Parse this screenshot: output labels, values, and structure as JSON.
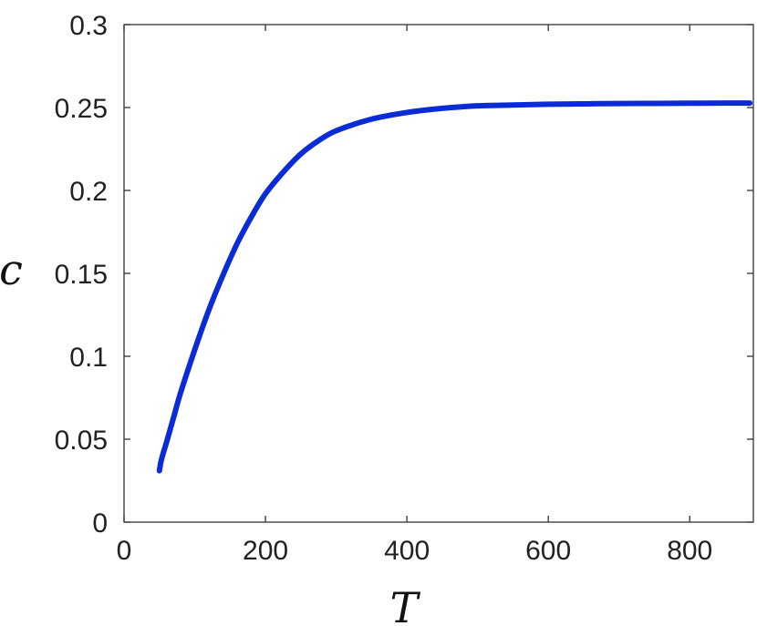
{
  "chart_data": {
    "type": "line",
    "xlabel": "T",
    "ylabel": "c",
    "xlim": [
      0,
      890
    ],
    "ylim": [
      0,
      0.3
    ],
    "grid": false,
    "x_ticks": [
      {
        "value": 0,
        "label": "0"
      },
      {
        "value": 200,
        "label": "200"
      },
      {
        "value": 400,
        "label": "400"
      },
      {
        "value": 600,
        "label": "600"
      },
      {
        "value": 800,
        "label": "800"
      }
    ],
    "y_ticks": [
      {
        "value": 0,
        "label": "0"
      },
      {
        "value": 0.05,
        "label": "0.05"
      },
      {
        "value": 0.1,
        "label": "0.1"
      },
      {
        "value": 0.15,
        "label": "0.15"
      },
      {
        "value": 0.2,
        "label": "0.2"
      },
      {
        "value": 0.25,
        "label": "0.25"
      },
      {
        "value": 0.3,
        "label": "0.3"
      }
    ],
    "series": [
      {
        "color": "#0a2bd6",
        "x": [
          50,
          52,
          55,
          60,
          70,
          80,
          100,
          120,
          140,
          160,
          180,
          200,
          225,
          250,
          275,
          300,
          350,
          400,
          450,
          500,
          550,
          600,
          650,
          700,
          750,
          800,
          850,
          885
        ],
        "y": [
          0.031,
          0.036,
          0.041,
          0.048,
          0.063,
          0.078,
          0.104,
          0.128,
          0.149,
          0.168,
          0.184,
          0.198,
          0.211,
          0.222,
          0.23,
          0.236,
          0.243,
          0.247,
          0.2495,
          0.251,
          0.2515,
          0.252,
          0.2522,
          0.2524,
          0.2525,
          0.2526,
          0.2527,
          0.2527
        ]
      }
    ]
  }
}
